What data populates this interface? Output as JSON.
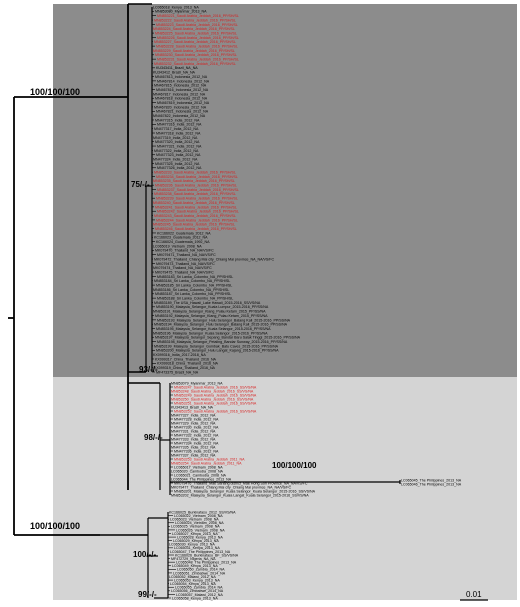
{
  "support_labels": {
    "root_upper": "100/100/100",
    "root_lower": "100/100/100",
    "dark_node": "75/-/-",
    "dark_base": "93/-/-",
    "light_node": "98/-/-",
    "long_branch": "100/100/100",
    "lower_node": "100/-/-",
    "bottom_node": "99/-/-"
  },
  "scale_bar": {
    "label": "0.01"
  },
  "colors": {
    "clade_dark_bg": "#8c8c8c",
    "clade_light_bg": "#d4d4d4",
    "branch": "#000000",
    "highlight_taxa": "#d81e1e",
    "normal_taxa": "#000000"
  },
  "clades": {
    "dark": {
      "taxa": [
        {
          "label": "LC065018_Kenya_2013_NA",
          "highlight": false
        },
        {
          "label": "MN853080_Myanmar_2013_NA",
          "highlight": false
        },
        {
          "label": "MN853221_Saudi Arabia_Jeddah_2016_PP/SH/SL",
          "highlight": true
        },
        {
          "label": "MN853222_Saudi Arabia_Jeddah_2016_PP/SH/SL",
          "highlight": true
        },
        {
          "label": "MN853223_Saudi Arabia_Jeddah_2016_PP/SH/SL",
          "highlight": true
        },
        {
          "label": "MN853224_Saudi Arabia_Jeddah_2016_PP/SH/SL",
          "highlight": true
        },
        {
          "label": "MN853225_Saudi Arabia_Jeddah_2016_PP/SH/SL",
          "highlight": true
        },
        {
          "label": "MN853226_Saudi Arabia_Jeddah_2016_PP/SH/SL",
          "highlight": true
        },
        {
          "label": "MN853227_Saudi Arabia_Jeddah_2016_PP/SH/SL",
          "highlight": true
        },
        {
          "label": "MN853228_Saudi Arabia_Jeddah_2016_PP/SH/SL",
          "highlight": true
        },
        {
          "label": "MN853229_Saudi Arabia_Jeddah_2016_PP/SH/SL",
          "highlight": true
        },
        {
          "label": "MN853230_Saudi Arabia_Jeddah_2016_PP/SH/SL",
          "highlight": true
        },
        {
          "label": "MN853231_Saudi Arabia_Jeddah_2016_PP/SH/SL",
          "highlight": true
        },
        {
          "label": "MN853232_Saudi Arabia_Jeddah_2016_PP/SH/SL",
          "highlight": true
        },
        {
          "label": "KU343411_Brazil_NA_NA",
          "highlight": false
        },
        {
          "label": "KU343412_Brazil_NA_NA",
          "highlight": false
        },
        {
          "label": "MN467813_Indonesia_2012_NA",
          "highlight": false
        },
        {
          "label": "MN467814_Indonesia_2012_NA",
          "highlight": false
        },
        {
          "label": "MN467815_Indonesia_2012_NA",
          "highlight": false
        },
        {
          "label": "MN467816_Indonesia_2012_NA",
          "highlight": false
        },
        {
          "label": "MN467817_Indonesia_2012_NA",
          "highlight": false
        },
        {
          "label": "MN467818_Indonesia_2012_NA",
          "highlight": false
        },
        {
          "label": "MN467819_Indonesia_2012_NA",
          "highlight": false
        },
        {
          "label": "MN467820_Indonesia_2012_NA",
          "highlight": false
        },
        {
          "label": "MN467821_Indonesia_2012_NA",
          "highlight": false
        },
        {
          "label": "MN467822_Indonesia_2012_NA",
          "highlight": false
        },
        {
          "label": "MN477315_India_2012_NA",
          "highlight": false
        },
        {
          "label": "MN477316_India_2012_NA",
          "highlight": false
        },
        {
          "label": "MN477317_India_2012_NA",
          "highlight": false
        },
        {
          "label": "MN477318_India_2012_NA",
          "highlight": false
        },
        {
          "label": "MN477319_India_2012_NA",
          "highlight": false
        },
        {
          "label": "MN477320_India_2012_NA",
          "highlight": false
        },
        {
          "label": "MN477321_India_2012_NA",
          "highlight": false
        },
        {
          "label": "MN477322_India_2012_NA",
          "highlight": false
        },
        {
          "label": "MN477323_India_2012_NA",
          "highlight": false
        },
        {
          "label": "MN477324_India_2012_NA",
          "highlight": false
        },
        {
          "label": "MN477325_India_2012_NA",
          "highlight": false
        },
        {
          "label": "MN477326_India_2012_NA",
          "highlight": false
        },
        {
          "label": "MN853233_Saudi Arabia_Jeddah_2016_PP/SH/SL",
          "highlight": true
        },
        {
          "label": "MN853234_Saudi Arabia_Jeddah_2016_PP/SH/SL",
          "highlight": true
        },
        {
          "label": "MN853235_Saudi Arabia_Jeddah_2016_PP/SH/SL",
          "highlight": true
        },
        {
          "label": "MN853236_Saudi Arabia_Jeddah_2016_PP/SH/SL",
          "highlight": true
        },
        {
          "label": "MN853237_Saudi Arabia_Jeddah_2016_PP/SH/SL",
          "highlight": true
        },
        {
          "label": "MN853238_Saudi Arabia_Jeddah_2016_PP/SH/SL",
          "highlight": true
        },
        {
          "label": "MN853239_Saudi Arabia_Jeddah_2016_PP/SH/SL",
          "highlight": true
        },
        {
          "label": "MN853240_Saudi Arabia_Jeddah_2016_PP/SH/SL",
          "highlight": true
        },
        {
          "label": "MN853241_Saudi Arabia_Jeddah_2016_PP/SH/SL",
          "highlight": true
        },
        {
          "label": "MN853242_Saudi Arabia_Jeddah_2016_PP/SH/SL",
          "highlight": true
        },
        {
          "label": "MN853243_Saudi Arabia_Jeddah_2016_PP/SH/SL",
          "highlight": true
        },
        {
          "label": "MN853244_Saudi Arabia_Jeddah_2016_PP/SH/SL",
          "highlight": true
        },
        {
          "label": "MN853245_Saudi Arabia_Jeddah_2016_PP/SH/SL",
          "highlight": true
        },
        {
          "label": "MN853246_Saudi Arabia_Jeddah_2016_PP/SH/SL",
          "highlight": true
        },
        {
          "label": "KC166022_Guatemala_2012_NA",
          "highlight": false
        },
        {
          "label": "KC166023_Guatemala_2012_NA",
          "highlight": false
        },
        {
          "label": "KC166024_Guatemala_1992_NA",
          "highlight": false
        },
        {
          "label": "LC065019_Vietnam_2008_NA",
          "highlight": false
        },
        {
          "label": "MK079470_Thailand_NA_NA/VS/FC",
          "highlight": false
        },
        {
          "label": "MK079471_Thailand_NA_NA/VS/FC",
          "highlight": false
        },
        {
          "label": "MK079472_Thailand_Chiang Mai city_Chiang Mai province_NA_NA/VS/FC",
          "highlight": false
        },
        {
          "label": "MK079473_Thailand_NA_NA/VS/FC",
          "highlight": false
        },
        {
          "label": "MK079474_Thailand_NA_NA/VS/FC",
          "highlight": false
        },
        {
          "label": "MK079475_Thailand_NA_NA/VS/FC",
          "highlight": false
        },
        {
          "label": "MN853183_Sri Lanka_Colombo_NA_PP/SH/SL",
          "highlight": false
        },
        {
          "label": "MN853184_Sri Lanka_Colombo_NA_PP/SH/SL",
          "highlight": false
        },
        {
          "label": "MN853185_Sri Lanka_Colombo_NA_PP/SH/SL",
          "highlight": false
        },
        {
          "label": "MN853186_Sri Lanka_Colombo_NA_PP/SH/SL",
          "highlight": false
        },
        {
          "label": "MN853187_Sri Lanka_Colombo_NA_PP/SH/SL",
          "highlight": false
        },
        {
          "label": "MN853188_Sri Lanka_Colombo_NA_PP/SH/SL",
          "highlight": false
        },
        {
          "label": "MN853189_The USA_Hawaii_Lake Hawaii_2015-2016_SS/VS/NA",
          "highlight": false
        },
        {
          "label": "MN853190_Malaysia_Selangor_Kuala Lumpur_2015-2016_PP/SS/NA",
          "highlight": false
        },
        {
          "label": "MN853191_Malaysia_Selangor_Klang_Pulau Ketam_2015_PP/SS/NA",
          "highlight": false
        },
        {
          "label": "MN853192_Malaysia_Selangor_Klang_Pulau Ketam_2015_PP/SS/NA",
          "highlight": false
        },
        {
          "label": "MN853193_Malaysia_Selangor_Hulu Selangor_Batang Kali_2015-2016_PP/SS/NA",
          "highlight": false
        },
        {
          "label": "MN853194_Malaysia_Selangor_Hulu Selangor_Batang Kali_2015-2016_PP/SS/NA",
          "highlight": false
        },
        {
          "label": "MN853195_Malaysia_Selangor_Kuala Selangor_2015-2016_PP/SS/NA",
          "highlight": false
        },
        {
          "label": "MN853196_Malaysia_Selangor_Kuala Selangor_2015-2016_PP/SS/NA",
          "highlight": false
        },
        {
          "label": "MN853197_Malaysia_Selangor_Sepang_Bandar Baru Salak Tinggi_2015-2016_PP/SS/NA",
          "highlight": false
        },
        {
          "label": "MN853198_Malaysia_Selangor_Petaling_Bandar Sunway_2015-2016_PP/SS/NA",
          "highlight": false
        },
        {
          "label": "MN853199_Malaysia_Selangor_Gombak_Batu Caves_2015-2016_PP/SS/NA",
          "highlight": false
        },
        {
          "label": "MN853200_Malaysia_Selangor_Hulu Langat_Kajang_2015-2016_PP/SS/NA",
          "highlight": false
        },
        {
          "label": "KX099316_India_2017-2018_NA",
          "highlight": false
        },
        {
          "label": "KX099317_China_Thailand_2016_NA",
          "highlight": false
        },
        {
          "label": "KX099318_China_Thailand_2016_NA",
          "highlight": false
        },
        {
          "label": "KX099319_China_Thailand_2016_NA",
          "highlight": false
        },
        {
          "label": "MF473375_Brazil_NA_NA",
          "highlight": false
        }
      ]
    },
    "light": {
      "taxa": [
        {
          "label": "MN853079_Myanmar_2013_NA",
          "highlight": false
        },
        {
          "label": "MN853247_Saudi Arabia_Jeddah_2016_SS/VS/NA",
          "highlight": true
        },
        {
          "label": "MN853248_Saudi Arabia_Jeddah_2016_SS/VS/NA",
          "highlight": true
        },
        {
          "label": "MN853249_Saudi Arabia_Jeddah_2016_SS/VS/NA",
          "highlight": true
        },
        {
          "label": "MN853250_Saudi Arabia_Jeddah_2016_SS/VS/NA",
          "highlight": true
        },
        {
          "label": "MN853251_Saudi Arabia_Jeddah_2016_SS/VS/NA",
          "highlight": true
        },
        {
          "label": "KU343413_Brazil_NA_NA",
          "highlight": false
        },
        {
          "label": "MN853252_Saudi Arabia_Jeddah_2016_SS/VS/NA",
          "highlight": true
        },
        {
          "label": "MN477327_India_2012_NA",
          "highlight": false
        },
        {
          "label": "MN477328_India_2012_NA",
          "highlight": false
        },
        {
          "label": "MN477329_India_2012_NA",
          "highlight": false
        },
        {
          "label": "MN477330_India_2012_NA",
          "highlight": false
        },
        {
          "label": "MN477331_India_2012_NA",
          "highlight": false
        },
        {
          "label": "MN477332_India_2012_NA",
          "highlight": false
        },
        {
          "label": "MN477333_India_2012_NA",
          "highlight": false
        },
        {
          "label": "MN477334_India_2012_NA",
          "highlight": false
        },
        {
          "label": "MN477335_India_2012_NA",
          "highlight": false
        },
        {
          "label": "MN477336_India_2012_NA",
          "highlight": false
        },
        {
          "label": "MN477337_India_2012_NA",
          "highlight": false
        },
        {
          "label": "MN853253_Saudi Arabia_Jeddah_2011_NA",
          "highlight": true
        },
        {
          "label": "MN853254_Saudi Arabia_Jeddah_2011_NA",
          "highlight": true
        },
        {
          "label": "LC065017_Vietnam_2008_NA",
          "highlight": false
        },
        {
          "label": "LC065020_Cambodia_2008_NA",
          "highlight": false
        },
        {
          "label": "LC065021_Cambodia_2008_NA",
          "highlight": false
        },
        {
          "label": "LC065044_The Philippines_2013_NA",
          "highlight": false
        },
        {
          "label": "MK079476_Thailand_Mae Sariang district_Mae Hong Son Province_NA_NA/VS/FC",
          "highlight": false
        },
        {
          "label": "MK079477_Thailand_Chiang Mai city_Chiang Mai province_NA_NA/VS/FC",
          "highlight": false
        },
        {
          "label": "MN853201_Malaysia_Selangor_Kuala Selangor_Kuala Selangor_2015-2016_SS/VS/NA",
          "highlight": false
        },
        {
          "label": "MN853202_Malaysia_Selangor_Kuala Langat_Kuala Selangor_2015-2016_SS/VS/NA",
          "highlight": false
        }
      ]
    },
    "long_branch": {
      "taxa": [
        {
          "label": "LC065045_The Philippines_2013_NA",
          "highlight": false
        },
        {
          "label": "LC065046_The Philippines_2013_NA",
          "highlight": false
        }
      ]
    },
    "outgroup": {
      "taxa": [
        {
          "label": "KC166025_Burkinafaso_2012_SS/VS/NA",
          "highlight": false
        },
        {
          "label": "LC065022_Vietnam_2008_NA",
          "highlight": false
        },
        {
          "label": "LC065023_Vietnam_2008_NA",
          "highlight": false
        },
        {
          "label": "LC065024_Vietnam_2008_NA",
          "highlight": false
        },
        {
          "label": "LC065025_Vietnam_2008_NA",
          "highlight": false
        },
        {
          "label": "LC065026_Vietnam_2008_NA",
          "highlight": false
        },
        {
          "label": "LC065027_Kenya_2013_NA",
          "highlight": false
        },
        {
          "label": "LC065028_Kenya_2013_NA",
          "highlight": false
        },
        {
          "label": "LC065029_Kenya_2013_NA",
          "highlight": false
        },
        {
          "label": "LC065030_Kenya_2013_NA",
          "highlight": false
        },
        {
          "label": "LC065031_Kenya_2013_NA",
          "highlight": false
        },
        {
          "label": "LC065047_The Philippines_2013_NA",
          "highlight": false
        },
        {
          "label": "KC166026_Burkinafaso_BF_SS/VS/NA",
          "highlight": false
        },
        {
          "label": "MF472729_Nigeria_NA_NA",
          "highlight": false
        },
        {
          "label": "LC065048_The Philippines_2013_NA",
          "highlight": false
        },
        {
          "label": "LC065049_Kenya_2013_NA",
          "highlight": false
        },
        {
          "label": "LC065050_Zambia_2014_NA",
          "highlight": false
        },
        {
          "label": "LC065051_Zimbabwe_2014_NA",
          "highlight": false
        },
        {
          "label": "LC065052_Malawi_2012_NA",
          "highlight": false
        },
        {
          "label": "LC065053_Kenya_2013_NA",
          "highlight": false
        },
        {
          "label": "LC065054_Kenya_2013_NA",
          "highlight": false
        },
        {
          "label": "LC065055_Zambia_2014_NA",
          "highlight": false
        },
        {
          "label": "LC065056_Zimbabwe_2014_NA",
          "highlight": false
        },
        {
          "label": "LC065057_Malawi_2012_NA",
          "highlight": false
        },
        {
          "label": "LC065058_Kenya_2013_NA",
          "highlight": false
        }
      ]
    }
  }
}
